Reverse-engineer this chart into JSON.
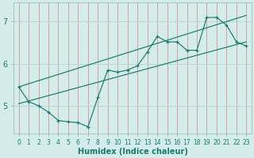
{
  "xlabel": "Humidex (Indice chaleur)",
  "ylabel": "",
  "x_data": [
    0,
    1,
    2,
    3,
    4,
    5,
    6,
    7,
    8,
    9,
    10,
    11,
    12,
    13,
    14,
    15,
    16,
    17,
    18,
    19,
    20,
    21,
    22,
    23
  ],
  "y_data": [
    5.45,
    5.1,
    5.0,
    4.85,
    4.65,
    4.62,
    4.6,
    4.5,
    5.2,
    5.85,
    5.8,
    5.85,
    5.95,
    6.28,
    6.65,
    6.52,
    6.52,
    6.32,
    6.32,
    7.1,
    7.1,
    6.92,
    6.52,
    6.42
  ],
  "line_color": "#1a7a6e",
  "bg_color": "#d4ecea",
  "grid_color": "#b8d8d4",
  "xlim": [
    -0.5,
    23.5
  ],
  "ylim": [
    4.35,
    7.45
  ],
  "yticks": [
    5,
    6,
    7
  ],
  "xticks": [
    0,
    1,
    2,
    3,
    4,
    5,
    6,
    7,
    8,
    9,
    10,
    11,
    12,
    13,
    14,
    15,
    16,
    17,
    18,
    19,
    20,
    21,
    22,
    23
  ],
  "trend1_x": [
    0,
    23
  ],
  "trend1_y": [
    5.05,
    6.52
  ],
  "trend2_x": [
    0,
    23
  ],
  "trend2_y": [
    5.45,
    7.15
  ]
}
